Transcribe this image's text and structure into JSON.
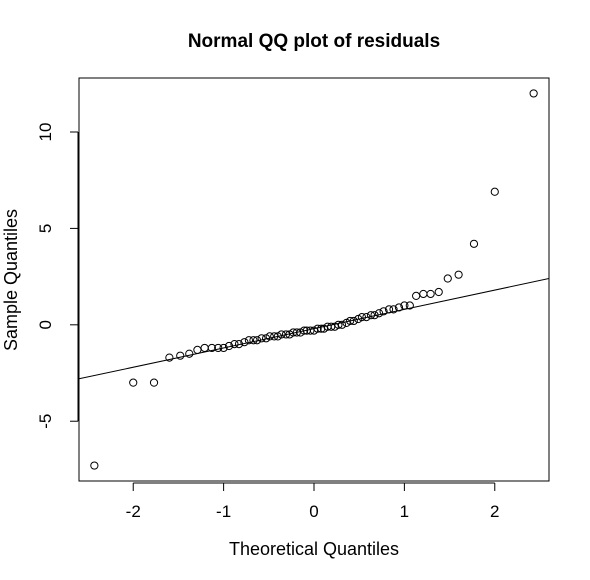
{
  "chart_data": {
    "type": "scatter",
    "title": "Normal QQ plot of residuals",
    "xlabel": "Theoretical Quantiles",
    "ylabel": "Sample Quantiles",
    "xlim": [
      -2.6,
      2.6
    ],
    "ylim": [
      -8.1,
      12.8
    ],
    "xticks": [
      "-2",
      "-1",
      "0",
      "1",
      "2"
    ],
    "yticks": [
      "-5",
      "0",
      "5",
      "10"
    ],
    "grid": false,
    "legend": "none",
    "points": {
      "x": [
        -2.43,
        -2.0,
        -1.77,
        -1.6,
        -1.48,
        -1.38,
        -1.29,
        -1.21,
        -1.13,
        -1.06,
        -1.0,
        -0.94,
        -0.88,
        -0.83,
        -0.77,
        -0.72,
        -0.67,
        -0.63,
        -0.58,
        -0.53,
        -0.49,
        -0.44,
        -0.4,
        -0.36,
        -0.31,
        -0.27,
        -0.23,
        -0.19,
        -0.15,
        -0.11,
        -0.08,
        -0.04,
        0.0,
        0.04,
        0.08,
        0.11,
        0.15,
        0.19,
        0.23,
        0.27,
        0.31,
        0.36,
        0.4,
        0.44,
        0.49,
        0.53,
        0.58,
        0.63,
        0.67,
        0.72,
        0.77,
        0.83,
        0.88,
        0.94,
        1.0,
        1.06,
        1.13,
        1.21,
        1.29,
        1.38,
        1.48,
        1.6,
        1.77,
        2.0,
        2.43
      ],
      "y": [
        -7.3,
        -3.0,
        -3.0,
        -1.7,
        -1.6,
        -1.5,
        -1.3,
        -1.2,
        -1.2,
        -1.2,
        -1.2,
        -1.1,
        -1.0,
        -1.0,
        -0.9,
        -0.8,
        -0.8,
        -0.8,
        -0.7,
        -0.7,
        -0.6,
        -0.6,
        -0.6,
        -0.5,
        -0.5,
        -0.5,
        -0.4,
        -0.4,
        -0.4,
        -0.3,
        -0.3,
        -0.3,
        -0.3,
        -0.2,
        -0.2,
        -0.2,
        -0.1,
        -0.1,
        -0.1,
        0.0,
        0.0,
        0.1,
        0.2,
        0.2,
        0.3,
        0.4,
        0.4,
        0.5,
        0.5,
        0.6,
        0.7,
        0.8,
        0.8,
        0.9,
        1.0,
        1.0,
        1.5,
        1.6,
        1.6,
        1.7,
        2.4,
        2.6,
        4.2,
        6.9,
        12.0
      ]
    },
    "reference_line": {
      "intercept": -0.2,
      "slope": 1.0
    }
  }
}
